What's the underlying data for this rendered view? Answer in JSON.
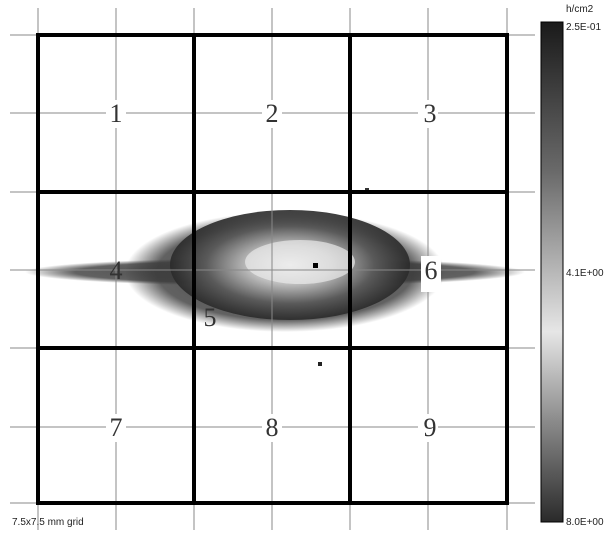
{
  "colorbar": {
    "unit": "h/cm2",
    "labels": [
      "2.5E-01",
      "4.1E+00",
      "8.0E+00"
    ]
  },
  "grid": {
    "cells": [
      "1",
      "2",
      "3",
      "4",
      "5",
      "6",
      "7",
      "8",
      "9"
    ],
    "caption": "7.5x7.5 mm grid"
  }
}
